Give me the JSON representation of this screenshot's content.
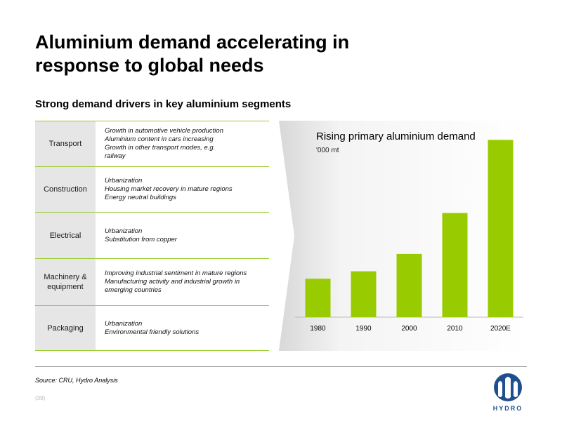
{
  "header": {
    "title": "Aluminium  demand accelerating in\nresponse to global needs",
    "subtitle": "Strong demand drivers in key aluminium segments"
  },
  "segments": [
    {
      "name": "Transport",
      "drivers": [
        "Growth in automotive vehicle production",
        "Aluminium content in cars increasing",
        "Growth in other transport modes, e.g.",
        "railway"
      ]
    },
    {
      "name": "Construction",
      "drivers": [
        "Urbanization",
        "Housing market recovery in mature regions",
        "Energy neutral buildings"
      ]
    },
    {
      "name": "Electrical",
      "drivers": [
        "Urbanization",
        "Substitution from copper"
      ]
    },
    {
      "name": "Machinery &\nequipment",
      "drivers": [
        "Improving industrial sentiment in mature regions",
        "Manufacturing activity and industrial growth in",
        "emerging countries"
      ]
    },
    {
      "name": "Packaging",
      "drivers": [
        "Urbanization",
        "Environmental friendly solutions"
      ]
    }
  ],
  "chart_data": {
    "type": "bar",
    "title": "Rising primary aluminium demand",
    "unit": "'000 mt",
    "categories": [
      "1980",
      "1990",
      "2000",
      "2010",
      "2020E"
    ],
    "values": [
      15500,
      18500,
      25500,
      42000,
      71500
    ],
    "ylim": [
      0,
      73000
    ],
    "bar_color": "#99cc00",
    "grid": false
  },
  "footer": {
    "source": "Source: CRU, Hydro Analysis",
    "page": "(39)",
    "logo_text": "HYDRO"
  },
  "colors": {
    "accent_line": "#9acd32",
    "category_bg": "#e6e6e6",
    "logo_blue": "#1f4f8f"
  }
}
